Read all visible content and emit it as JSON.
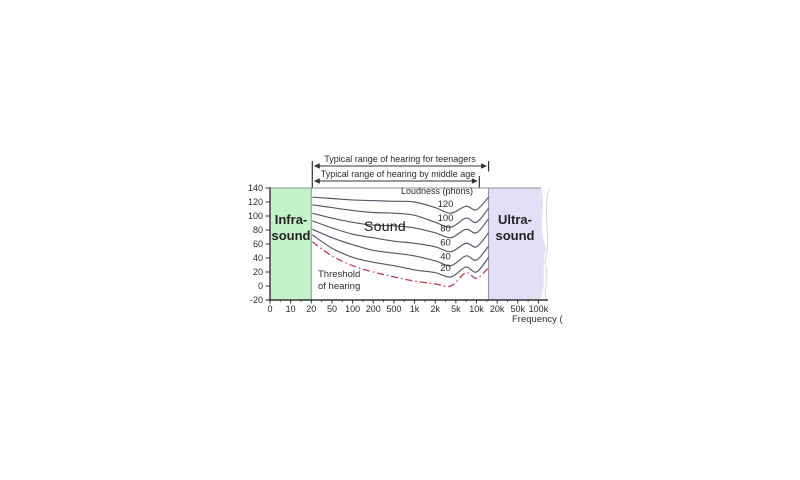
{
  "figure": {
    "colors": {
      "infrasound": "#c3f4c9",
      "ultrasound": "#e2e0f6",
      "curve": "#4f5a66",
      "threshold": "#c43b4e",
      "axis": "#333333",
      "boundary": "#8f8f97",
      "tear": "#d4d4de",
      "text": "#2b2b2b"
    },
    "regions": {
      "infrasound": {
        "line1": "Infra-",
        "line2": "sound"
      },
      "sound": {
        "label": "Sound"
      },
      "ultrasound": {
        "line1": "Ultra-",
        "line2": "sound"
      }
    },
    "threshold": {
      "line1": "Threshold",
      "line2": "of hearing"
    }
  },
  "chart_data": {
    "type": "line",
    "title": "",
    "legend_label": "Loudness (phons)",
    "x_axis": {
      "label_partial": "Frequency (",
      "tick_labels": [
        "0",
        "10",
        "20",
        "50",
        "100",
        "200",
        "500",
        "1k",
        "2k",
        "5k",
        "10k",
        "20k",
        "50k",
        "100k"
      ],
      "tick_values_hz": [
        0,
        10,
        20,
        50,
        100,
        200,
        500,
        1000,
        2000,
        5000,
        10000,
        20000,
        50000,
        100000
      ],
      "scale": "uniform ticks, log-like between labels"
    },
    "y_axis": {
      "tick_labels": [
        "140",
        "120",
        "100",
        "80",
        "60",
        "40",
        "20",
        "0",
        "-20"
      ],
      "range": [
        -20,
        140
      ],
      "unit": "dB (implied)"
    },
    "freqs_hz": [
      21,
      50,
      100,
      200,
      500,
      1000,
      2000,
      4000,
      7000,
      10000,
      15000
    ],
    "series": [
      {
        "name": "120",
        "style": "solid",
        "db": [
          127,
          125,
          123,
          122,
          121,
          120,
          112,
          104,
          114,
          109,
          127
        ]
      },
      {
        "name": "100",
        "style": "solid",
        "db": [
          116,
          112,
          108,
          105,
          104,
          101,
          91,
          84,
          97,
          91,
          111
        ]
      },
      {
        "name": "80",
        "style": "solid",
        "db": [
          104,
          97,
          91,
          87,
          86,
          83,
          76,
          69,
          81,
          76,
          96
        ]
      },
      {
        "name": "60",
        "style": "solid",
        "db": [
          93,
          83,
          74,
          69,
          64,
          61,
          56,
          49,
          61,
          56,
          76
        ]
      },
      {
        "name": "40",
        "style": "solid",
        "db": [
          81,
          69,
          59,
          51,
          47,
          43,
          36,
          29,
          43,
          37,
          57
        ]
      },
      {
        "name": "20",
        "style": "solid",
        "db": [
          73,
          54,
          41,
          34,
          29,
          23,
          19,
          13,
          27,
          20,
          41
        ]
      },
      {
        "name": "Threshold of hearing",
        "style": "dashdot",
        "db": [
          63,
          43,
          29,
          20,
          13,
          7,
          3,
          0,
          19,
          11,
          26
        ]
      }
    ],
    "regions": [
      {
        "name": "Infrasound",
        "from_hz": 0,
        "to_hz": 20
      },
      {
        "name": "Sound",
        "from_hz": 20,
        "to_hz": 15000
      },
      {
        "name": "Ultrasound",
        "from_hz": 15000,
        "to_hz": 100000
      }
    ],
    "annotations": [
      {
        "text": "Typical range of hearing for teenagers",
        "from_hz": 20,
        "to_hz": 15000
      },
      {
        "text": "Typical range of hearing by middle age",
        "from_hz": 20,
        "to_hz": 11000
      }
    ]
  }
}
